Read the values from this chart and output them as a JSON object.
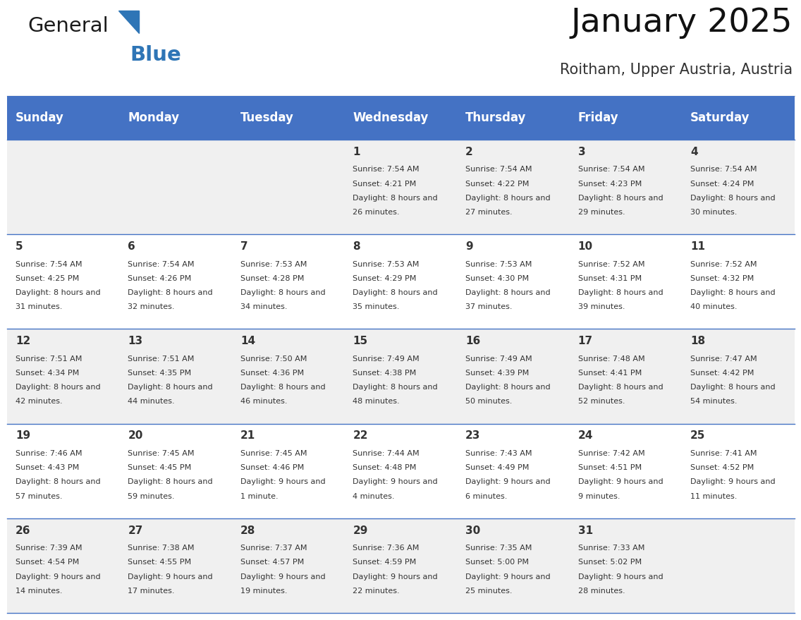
{
  "title": "January 2025",
  "subtitle": "Roitham, Upper Austria, Austria",
  "header_color": "#4472C4",
  "header_text_color": "#FFFFFF",
  "days_of_week": [
    "Sunday",
    "Monday",
    "Tuesday",
    "Wednesday",
    "Thursday",
    "Friday",
    "Saturday"
  ],
  "background_color": "#FFFFFF",
  "cell_alt_color": "#F0F0F0",
  "cell_text_color": "#333333",
  "day_number_color": "#333333",
  "border_color": "#4472C4",
  "logo_color": "#2E75B6",
  "calendar": [
    [
      {
        "day": null,
        "sunrise": null,
        "sunset": null,
        "daylight": null
      },
      {
        "day": null,
        "sunrise": null,
        "sunset": null,
        "daylight": null
      },
      {
        "day": null,
        "sunrise": null,
        "sunset": null,
        "daylight": null
      },
      {
        "day": 1,
        "sunrise": "7:54 AM",
        "sunset": "4:21 PM",
        "daylight": "8 hours and 26 minutes."
      },
      {
        "day": 2,
        "sunrise": "7:54 AM",
        "sunset": "4:22 PM",
        "daylight": "8 hours and 27 minutes."
      },
      {
        "day": 3,
        "sunrise": "7:54 AM",
        "sunset": "4:23 PM",
        "daylight": "8 hours and 29 minutes."
      },
      {
        "day": 4,
        "sunrise": "7:54 AM",
        "sunset": "4:24 PM",
        "daylight": "8 hours and 30 minutes."
      }
    ],
    [
      {
        "day": 5,
        "sunrise": "7:54 AM",
        "sunset": "4:25 PM",
        "daylight": "8 hours and 31 minutes."
      },
      {
        "day": 6,
        "sunrise": "7:54 AM",
        "sunset": "4:26 PM",
        "daylight": "8 hours and 32 minutes."
      },
      {
        "day": 7,
        "sunrise": "7:53 AM",
        "sunset": "4:28 PM",
        "daylight": "8 hours and 34 minutes."
      },
      {
        "day": 8,
        "sunrise": "7:53 AM",
        "sunset": "4:29 PM",
        "daylight": "8 hours and 35 minutes."
      },
      {
        "day": 9,
        "sunrise": "7:53 AM",
        "sunset": "4:30 PM",
        "daylight": "8 hours and 37 minutes."
      },
      {
        "day": 10,
        "sunrise": "7:52 AM",
        "sunset": "4:31 PM",
        "daylight": "8 hours and 39 minutes."
      },
      {
        "day": 11,
        "sunrise": "7:52 AM",
        "sunset": "4:32 PM",
        "daylight": "8 hours and 40 minutes."
      }
    ],
    [
      {
        "day": 12,
        "sunrise": "7:51 AM",
        "sunset": "4:34 PM",
        "daylight": "8 hours and 42 minutes."
      },
      {
        "day": 13,
        "sunrise": "7:51 AM",
        "sunset": "4:35 PM",
        "daylight": "8 hours and 44 minutes."
      },
      {
        "day": 14,
        "sunrise": "7:50 AM",
        "sunset": "4:36 PM",
        "daylight": "8 hours and 46 minutes."
      },
      {
        "day": 15,
        "sunrise": "7:49 AM",
        "sunset": "4:38 PM",
        "daylight": "8 hours and 48 minutes."
      },
      {
        "day": 16,
        "sunrise": "7:49 AM",
        "sunset": "4:39 PM",
        "daylight": "8 hours and 50 minutes."
      },
      {
        "day": 17,
        "sunrise": "7:48 AM",
        "sunset": "4:41 PM",
        "daylight": "8 hours and 52 minutes."
      },
      {
        "day": 18,
        "sunrise": "7:47 AM",
        "sunset": "4:42 PM",
        "daylight": "8 hours and 54 minutes."
      }
    ],
    [
      {
        "day": 19,
        "sunrise": "7:46 AM",
        "sunset": "4:43 PM",
        "daylight": "8 hours and 57 minutes."
      },
      {
        "day": 20,
        "sunrise": "7:45 AM",
        "sunset": "4:45 PM",
        "daylight": "8 hours and 59 minutes."
      },
      {
        "day": 21,
        "sunrise": "7:45 AM",
        "sunset": "4:46 PM",
        "daylight": "9 hours and 1 minute."
      },
      {
        "day": 22,
        "sunrise": "7:44 AM",
        "sunset": "4:48 PM",
        "daylight": "9 hours and 4 minutes."
      },
      {
        "day": 23,
        "sunrise": "7:43 AM",
        "sunset": "4:49 PM",
        "daylight": "9 hours and 6 minutes."
      },
      {
        "day": 24,
        "sunrise": "7:42 AM",
        "sunset": "4:51 PM",
        "daylight": "9 hours and 9 minutes."
      },
      {
        "day": 25,
        "sunrise": "7:41 AM",
        "sunset": "4:52 PM",
        "daylight": "9 hours and 11 minutes."
      }
    ],
    [
      {
        "day": 26,
        "sunrise": "7:39 AM",
        "sunset": "4:54 PM",
        "daylight": "9 hours and 14 minutes."
      },
      {
        "day": 27,
        "sunrise": "7:38 AM",
        "sunset": "4:55 PM",
        "daylight": "9 hours and 17 minutes."
      },
      {
        "day": 28,
        "sunrise": "7:37 AM",
        "sunset": "4:57 PM",
        "daylight": "9 hours and 19 minutes."
      },
      {
        "day": 29,
        "sunrise": "7:36 AM",
        "sunset": "4:59 PM",
        "daylight": "9 hours and 22 minutes."
      },
      {
        "day": 30,
        "sunrise": "7:35 AM",
        "sunset": "5:00 PM",
        "daylight": "9 hours and 25 minutes."
      },
      {
        "day": 31,
        "sunrise": "7:33 AM",
        "sunset": "5:02 PM",
        "daylight": "9 hours and 28 minutes."
      },
      {
        "day": null,
        "sunrise": null,
        "sunset": null,
        "daylight": null
      }
    ]
  ]
}
